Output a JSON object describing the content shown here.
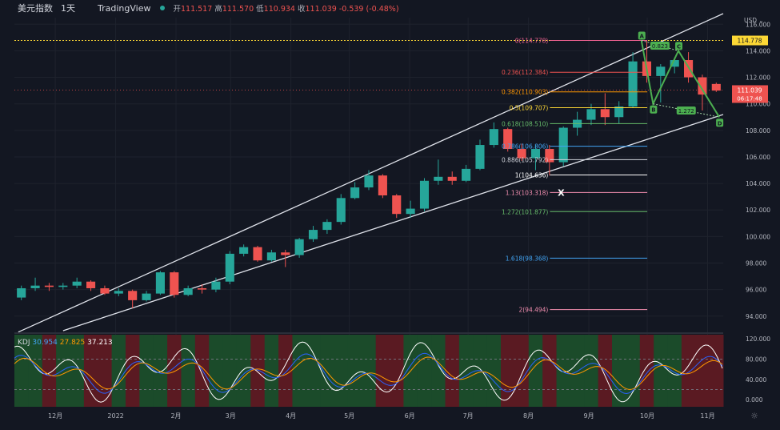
{
  "header": {
    "symbol": "美元指数",
    "timeframe": "1天",
    "brand": "TradingView",
    "open_label": "开",
    "open": "111.517",
    "high_label": "高",
    "high": "111.570",
    "low_label": "低",
    "low": "110.934",
    "close_label": "收",
    "close": "111.039",
    "change": "-0.539",
    "change_pct": "(-0.48%)"
  },
  "currency_menu": "USD ⌄",
  "kdj": {
    "label": "KDJ",
    "k": "30.954",
    "d": "27.825",
    "j": "37.213"
  },
  "price_tags": {
    "high_level": "114.778",
    "current_price": "111.039",
    "countdown": "06:17:48"
  },
  "colors": {
    "background": "#131722",
    "up": "#26a69a",
    "down": "#ef5350",
    "channel": "#e0e3eb",
    "pattern": "#4caf50",
    "kdj_k": "#2962ff",
    "kdj_d": "#ff9800",
    "kdj_j": "#ffffff"
  },
  "settings_icon": "gear-icon",
  "chart_data": [
    {
      "type": "candlestick",
      "title": "美元指数 1天",
      "x": [
        "2021-11-15",
        "2021-11-22",
        "2021-11-29",
        "2021-12-06",
        "2021-12-13",
        "2021-12-20",
        "2021-12-27",
        "2022-01-03",
        "2022-01-10",
        "2022-01-17",
        "2022-01-24",
        "2022-01-31",
        "2022-02-07",
        "2022-02-14",
        "2022-02-21",
        "2022-02-28",
        "2022-03-07",
        "2022-03-14",
        "2022-03-21",
        "2022-03-28",
        "2022-04-04",
        "2022-04-11",
        "2022-04-18",
        "2022-04-25",
        "2022-05-02",
        "2022-05-09",
        "2022-05-16",
        "2022-05-23",
        "2022-05-30",
        "2022-06-06",
        "2022-06-13",
        "2022-06-20",
        "2022-06-27",
        "2022-07-04",
        "2022-07-11",
        "2022-07-18",
        "2022-07-25",
        "2022-08-01",
        "2022-08-08",
        "2022-08-15",
        "2022-08-22",
        "2022-08-29",
        "2022-09-05",
        "2022-09-12",
        "2022-09-19",
        "2022-09-26",
        "2022-10-03",
        "2022-10-10",
        "2022-10-17",
        "2022-10-24",
        "2022-10-31"
      ],
      "close": [
        96.1,
        96.3,
        96.2,
        96.3,
        96.6,
        96.1,
        95.7,
        95.9,
        95.2,
        95.7,
        97.3,
        95.6,
        96.1,
        96.0,
        96.6,
        98.7,
        99.2,
        98.2,
        98.8,
        98.6,
        99.8,
        100.5,
        101.1,
        102.9,
        103.7,
        104.6,
        103.1,
        101.7,
        102.1,
        104.2,
        104.5,
        104.2,
        105.1,
        106.9,
        108.1,
        106.6,
        105.9,
        106.6,
        105.6,
        108.2,
        108.8,
        109.6,
        109.0,
        109.8,
        113.2,
        112.1,
        112.8,
        113.3,
        112.0,
        110.7,
        111.0
      ],
      "open": [
        95.4,
        96.1,
        96.3,
        96.2,
        96.3,
        96.6,
        96.1,
        95.7,
        95.9,
        95.2,
        95.7,
        97.3,
        95.6,
        96.1,
        96.0,
        96.6,
        98.7,
        99.2,
        98.2,
        98.8,
        98.6,
        99.8,
        100.5,
        101.1,
        102.9,
        103.7,
        104.6,
        103.1,
        101.7,
        102.1,
        104.2,
        104.5,
        104.2,
        105.1,
        106.9,
        108.1,
        106.6,
        105.9,
        106.6,
        105.6,
        108.2,
        108.8,
        109.6,
        109.0,
        109.8,
        113.2,
        112.1,
        112.8,
        113.3,
        112.0,
        111.5
      ],
      "high": [
        96.3,
        96.9,
        96.5,
        96.5,
        96.9,
        96.7,
        96.3,
        96.1,
        96.0,
        95.9,
        97.4,
        97.4,
        96.3,
        96.4,
        96.9,
        98.9,
        99.4,
        99.3,
        99.0,
        99.0,
        99.9,
        100.8,
        101.3,
        103.2,
        104.1,
        105.0,
        104.7,
        103.2,
        102.7,
        104.4,
        105.8,
        104.9,
        105.4,
        107.3,
        108.6,
        108.2,
        107.0,
        106.9,
        106.9,
        108.3,
        109.4,
        110.0,
        110.8,
        110.2,
        113.9,
        114.8,
        113.0,
        113.5,
        113.9,
        112.2,
        111.6
      ],
      "low": [
        95.2,
        95.9,
        95.9,
        96.0,
        96.1,
        95.9,
        95.6,
        95.5,
        94.6,
        95.1,
        95.6,
        95.4,
        95.5,
        95.7,
        95.8,
        96.4,
        98.5,
        98.1,
        98.1,
        97.7,
        98.4,
        99.6,
        100.2,
        100.9,
        102.8,
        103.5,
        102.9,
        101.4,
        101.4,
        101.9,
        103.9,
        103.9,
        104.1,
        105.0,
        106.7,
        106.4,
        105.7,
        105.0,
        104.6,
        105.3,
        107.6,
        108.4,
        108.4,
        108.5,
        109.7,
        111.6,
        110.1,
        112.3,
        111.6,
        109.5,
        110.9
      ],
      "ylim": [
        92.9,
        116.5
      ],
      "y_ticks": [
        "116.000",
        "114.000",
        "112.000",
        "110.000",
        "108.000",
        "106.000",
        "104.000",
        "102.000",
        "100.000",
        "98.000",
        "96.000",
        "94.000"
      ],
      "x_ticks": [
        "12月",
        "2022",
        "2月",
        "3月",
        "4月",
        "5月",
        "6月",
        "7月",
        "8月",
        "9月",
        "10月",
        "11月"
      ],
      "grid": true,
      "fib_levels": [
        {
          "label": "0(114.778)",
          "value": 114.778,
          "color": "#f06292"
        },
        {
          "label": "0.236(112.384)",
          "value": 112.384,
          "color": "#ef5350"
        },
        {
          "label": "0.382(110.903)",
          "value": 110.903,
          "color": "#ff9800"
        },
        {
          "label": "0.5(109.707)",
          "value": 109.707,
          "color": "#fdd835"
        },
        {
          "label": "0.618(108.510)",
          "value": 108.51,
          "color": "#66bb6a"
        },
        {
          "label": "0.786(106.806)",
          "value": 106.806,
          "color": "#42a5f5"
        },
        {
          "label": "0.886(105.792)",
          "value": 105.792,
          "color": "#d1d4dc"
        },
        {
          "label": "1(104.636)",
          "value": 104.636,
          "color": "#ffffff"
        },
        {
          "label": "1.13(103.318)",
          "value": 103.318,
          "color": "#f48fb1"
        },
        {
          "label": "1.272(101.877)",
          "value": 101.877,
          "color": "#66bb6a"
        },
        {
          "label": "1.618(98.368)",
          "value": 98.368,
          "color": "#42a5f5"
        },
        {
          "label": "2(94.494)",
          "value": 94.494,
          "color": "#f48fb1"
        }
      ],
      "pattern_points": [
        {
          "label": "A",
          "date": "2022-09-28",
          "value": 114.78
        },
        {
          "label": "B",
          "date": "2022-10-04",
          "value": 110.0
        },
        {
          "label": "C",
          "date": "2022-10-17",
          "value": 114.0
        },
        {
          "label": "D",
          "date": "2022-11-07",
          "value": 109.0
        }
      ],
      "pattern_ratios": [
        {
          "label": "0.823",
          "value": 0.823
        },
        {
          "label": "1.272",
          "value": 1.272
        }
      ],
      "x_marker": "X"
    },
    {
      "type": "line",
      "title": "KDJ",
      "series": [
        {
          "name": "K",
          "value_shown": 30.954
        },
        {
          "name": "D",
          "value_shown": 27.825
        },
        {
          "name": "J",
          "value_shown": 37.213
        }
      ],
      "y_ticks": [
        "120.000",
        "80.000",
        "40.000",
        "0.000"
      ],
      "ylim": [
        -14,
        128
      ]
    }
  ]
}
